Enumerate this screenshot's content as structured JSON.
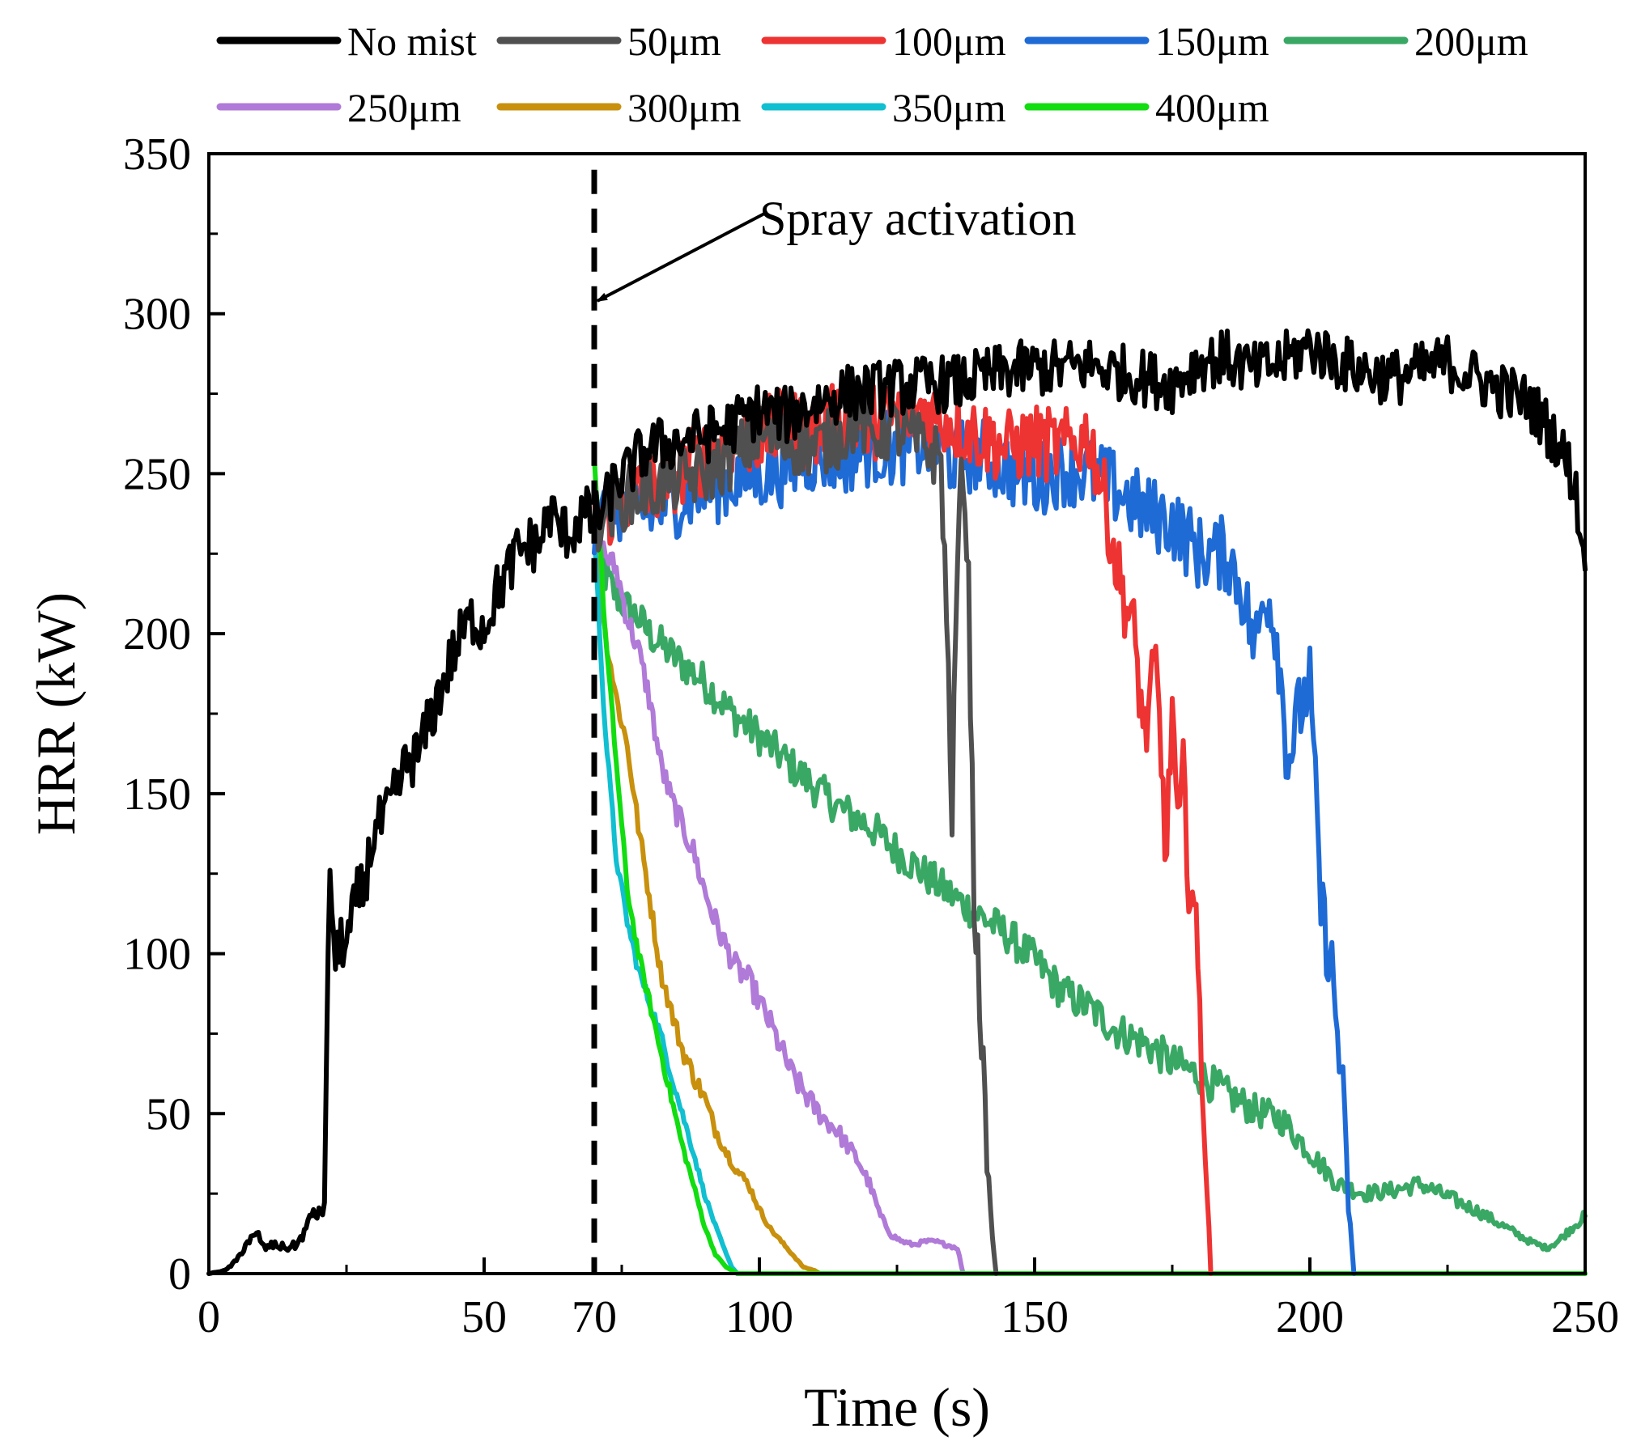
{
  "chart_data": {
    "type": "line",
    "title": "",
    "xlabel": "Time (s)",
    "ylabel": "HRR (kW)",
    "xlim": [
      0,
      250
    ],
    "ylim": [
      0,
      350
    ],
    "xticks": [
      0,
      50,
      70,
      100,
      150,
      200,
      250
    ],
    "yticks": [
      0,
      50,
      100,
      150,
      200,
      250,
      300,
      350
    ],
    "grid": false,
    "legend_position": "top",
    "annotation": {
      "text": "Spray activation",
      "x": 70,
      "y": 304
    },
    "spray_activation_time": 70,
    "series": [
      {
        "name": "No mist",
        "color": "#000000",
        "x": [
          0,
          3,
          5,
          7,
          9,
          10,
          12,
          14,
          16,
          18,
          19,
          20,
          21,
          22,
          23,
          24,
          25,
          26,
          27,
          28,
          30,
          32,
          34,
          36,
          38,
          40,
          42,
          44,
          46,
          48,
          50,
          52,
          54,
          56,
          58,
          60,
          62,
          64,
          66,
          68,
          70,
          72,
          74,
          76,
          78,
          80,
          85,
          90,
          95,
          100,
          105,
          110,
          115,
          120,
          125,
          130,
          135,
          140,
          145,
          150,
          155,
          160,
          165,
          170,
          175,
          180,
          185,
          190,
          195,
          200,
          205,
          210,
          215,
          220,
          225,
          230,
          235,
          240,
          245,
          248,
          250
        ],
        "y": [
          0,
          1,
          4,
          10,
          12,
          8,
          9,
          8,
          9,
          15,
          20,
          18,
          22,
          129,
          95,
          105,
          102,
          110,
          118,
          120,
          138,
          142,
          150,
          160,
          162,
          172,
          182,
          192,
          200,
          205,
          202,
          212,
          218,
          225,
          228,
          228,
          238,
          232,
          232,
          238,
          235,
          240,
          248,
          250,
          255,
          258,
          260,
          262,
          265,
          270,
          268,
          272,
          275,
          276,
          277,
          278,
          278,
          280,
          282,
          283,
          283,
          284,
          282,
          280,
          278,
          285,
          286,
          282,
          285,
          290,
          285,
          282,
          280,
          282,
          285,
          280,
          276,
          272,
          260,
          248,
          220
        ]
      },
      {
        "name": "50μm",
        "color": "#505050",
        "x": [
          70,
          75,
          80,
          85,
          90,
          95,
          100,
          105,
          110,
          115,
          118,
          120,
          125,
          130,
          133,
          134,
          135,
          136,
          137,
          138,
          139,
          140,
          141,
          142,
          143
        ],
        "y": [
          235,
          242,
          245,
          248,
          250,
          255,
          262,
          260,
          258,
          262,
          268,
          262,
          264,
          258,
          255,
          205,
          145,
          225,
          255,
          215,
          118,
          88,
          48,
          18,
          0
        ]
      },
      {
        "name": "100μm",
        "color": "#ee3333",
        "x": [
          70,
          75,
          80,
          85,
          90,
          95,
          100,
          105,
          110,
          115,
          120,
          125,
          130,
          135,
          140,
          145,
          150,
          155,
          160,
          163,
          165,
          168,
          170,
          172,
          174,
          175,
          176,
          177,
          178,
          179,
          180,
          181,
          182
        ],
        "y": [
          235,
          242,
          245,
          250,
          255,
          260,
          262,
          265,
          262,
          268,
          266,
          268,
          270,
          266,
          262,
          258,
          260,
          258,
          262,
          240,
          220,
          200,
          168,
          190,
          130,
          180,
          135,
          155,
          125,
          115,
          82,
          40,
          0
        ]
      },
      {
        "name": "150μm",
        "color": "#1f6bd6",
        "x": [
          70,
          75,
          80,
          85,
          90,
          95,
          100,
          105,
          110,
          115,
          120,
          125,
          130,
          135,
          140,
          145,
          150,
          155,
          160,
          165,
          170,
          175,
          180,
          185,
          188,
          190,
          192,
          194,
          196,
          198,
          200,
          202,
          204,
          206,
          207,
          208
        ],
        "y": [
          235,
          240,
          238,
          242,
          245,
          248,
          250,
          252,
          256,
          255,
          258,
          258,
          260,
          255,
          256,
          252,
          248,
          252,
          250,
          245,
          238,
          235,
          225,
          225,
          212,
          195,
          215,
          200,
          160,
          175,
          185,
          115,
          95,
          55,
          22,
          0
        ]
      },
      {
        "name": "200μm",
        "color": "#3aa865",
        "x": [
          70,
          72,
          74,
          76,
          78,
          80,
          85,
          90,
          95,
          100,
          105,
          110,
          115,
          120,
          125,
          130,
          135,
          140,
          145,
          150,
          155,
          160,
          165,
          170,
          175,
          180,
          185,
          190,
          195,
          200,
          205,
          210,
          215,
          220,
          225,
          230,
          235,
          240,
          243,
          245,
          248,
          250
        ],
        "y": [
          235,
          218,
          212,
          208,
          205,
          200,
          192,
          185,
          175,
          168,
          160,
          152,
          145,
          140,
          132,
          125,
          118,
          112,
          106,
          98,
          88,
          83,
          76,
          72,
          66,
          62,
          56,
          51,
          48,
          38,
          28,
          25,
          26,
          28,
          24,
          20,
          15,
          10,
          8,
          10,
          15,
          18
        ]
      },
      {
        "name": "250μm",
        "color": "#b07ad8",
        "x": [
          70,
          72,
          74,
          76,
          78,
          80,
          82,
          84,
          86,
          88,
          90,
          92,
          94,
          96,
          98,
          100,
          102,
          104,
          106,
          108,
          110,
          112,
          114,
          116,
          118,
          120,
          122,
          124,
          126,
          128,
          130,
          132,
          134,
          136,
          137
        ],
        "y": [
          232,
          225,
          220,
          205,
          195,
          180,
          160,
          148,
          140,
          132,
          120,
          110,
          102,
          95,
          92,
          85,
          78,
          70,
          62,
          57,
          52,
          48,
          45,
          40,
          35,
          28,
          18,
          12,
          10,
          9,
          10,
          10,
          9,
          8,
          0
        ]
      },
      {
        "name": "300μm",
        "color": "#c8900c",
        "x": [
          70,
          72,
          74,
          76,
          78,
          80,
          82,
          84,
          86,
          88,
          90,
          92,
          94,
          96,
          98,
          100,
          102,
          104,
          106,
          108,
          110,
          111
        ],
        "y": [
          232,
          200,
          180,
          165,
          140,
          118,
          95,
          82,
          70,
          62,
          55,
          45,
          38,
          32,
          28,
          20,
          14,
          10,
          6,
          2,
          1,
          0
        ]
      },
      {
        "name": "350μm",
        "color": "#10bfd0",
        "x": [
          70,
          71,
          72,
          73,
          74,
          76,
          78,
          80,
          82,
          84,
          86,
          88,
          90,
          92,
          94,
          95,
          96
        ],
        "y": [
          232,
          200,
          170,
          150,
          130,
          110,
          95,
          85,
          75,
          62,
          50,
          38,
          25,
          15,
          6,
          2,
          0
        ]
      },
      {
        "name": "400μm",
        "color": "#11dd11",
        "x": [
          70,
          71,
          72,
          73,
          74,
          76,
          78,
          80,
          82,
          84,
          86,
          88,
          90,
          92,
          94,
          95,
          96,
          100,
          150,
          200,
          250
        ],
        "y": [
          255,
          230,
          200,
          180,
          160,
          120,
          100,
          85,
          70,
          55,
          40,
          28,
          15,
          6,
          2,
          1,
          0,
          0,
          0,
          0,
          0
        ]
      }
    ]
  }
}
